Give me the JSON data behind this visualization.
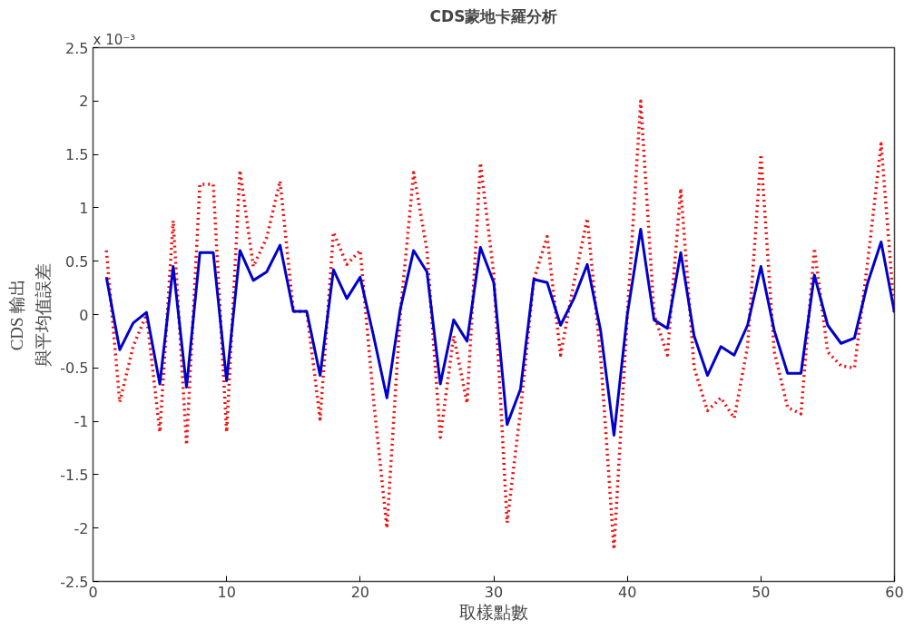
{
  "chart_data": {
    "type": "line",
    "title": "CDS蒙地卡羅分析",
    "xlabel": "取樣點數",
    "ylabel": "與平均值誤差",
    "annotations": [
      "x 10⁻³",
      "CDS 輸出"
    ],
    "x": [
      1,
      2,
      3,
      4,
      5,
      6,
      7,
      8,
      9,
      10,
      11,
      12,
      13,
      14,
      15,
      16,
      17,
      18,
      19,
      20,
      21,
      22,
      23,
      24,
      25,
      26,
      27,
      28,
      29,
      30,
      31,
      32,
      33,
      34,
      35,
      36,
      37,
      38,
      39,
      40,
      41,
      42,
      43,
      44,
      45,
      46,
      47,
      48,
      49,
      50,
      51,
      52,
      53,
      54,
      55,
      56,
      57,
      58,
      59,
      60
    ],
    "series": [
      {
        "color": "#ee1111",
        "line_style": "dotted",
        "values": [
          0.6,
          -0.82,
          -0.3,
          0.0,
          -1.1,
          0.88,
          -1.22,
          1.22,
          1.22,
          -1.1,
          1.35,
          0.45,
          0.72,
          1.25,
          0.03,
          0.03,
          -0.98,
          0.77,
          0.47,
          0.6,
          -0.8,
          -2.0,
          0.0,
          1.33,
          0.6,
          -1.15,
          -0.2,
          -0.83,
          1.42,
          0.38,
          -1.95,
          -0.9,
          0.33,
          0.73,
          -0.38,
          0.3,
          0.9,
          -0.4,
          -2.2,
          0.0,
          2.0,
          0.0,
          -0.38,
          1.18,
          -0.5,
          -0.9,
          -0.78,
          -0.97,
          -0.3,
          1.5,
          -0.35,
          -0.87,
          -0.93,
          0.62,
          -0.35,
          -0.48,
          -0.5,
          0.5,
          1.6,
          0.0
        ]
      },
      {
        "color": "#0000cc",
        "line_style": "solid",
        "values": [
          0.35,
          -0.33,
          -0.08,
          0.02,
          -0.65,
          0.45,
          -0.68,
          0.58,
          0.58,
          -0.62,
          0.6,
          0.32,
          0.4,
          0.65,
          0.03,
          0.03,
          -0.57,
          0.42,
          0.15,
          0.35,
          -0.2,
          -0.78,
          0.05,
          0.6,
          0.4,
          -0.65,
          -0.05,
          -0.25,
          0.63,
          0.3,
          -1.03,
          -0.7,
          0.33,
          0.3,
          -0.1,
          0.15,
          0.47,
          -0.15,
          -1.13,
          0.0,
          0.8,
          -0.05,
          -0.13,
          0.58,
          -0.2,
          -0.57,
          -0.3,
          -0.38,
          -0.1,
          0.45,
          -0.15,
          -0.55,
          -0.55,
          0.37,
          -0.1,
          -0.27,
          -0.22,
          0.3,
          0.68,
          0.02
        ]
      }
    ],
    "xlim": [
      0,
      60
    ],
    "xticks": [
      0,
      10,
      20,
      30,
      40,
      50,
      60
    ],
    "ylim": [
      -2.5,
      2.5
    ],
    "yticks": [
      -2.5,
      -2,
      -1.5,
      -1,
      -0.5,
      0,
      0.5,
      1,
      1.5,
      2,
      2.5
    ],
    "grid": false,
    "marker": "none"
  }
}
